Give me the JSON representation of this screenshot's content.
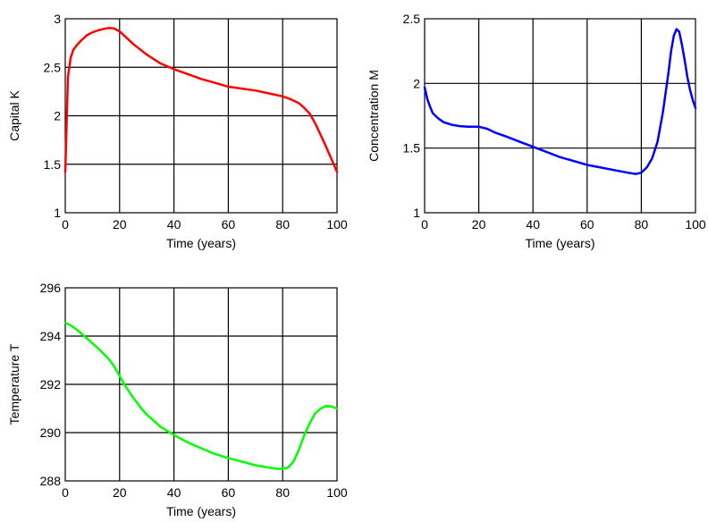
{
  "chart_data": [
    {
      "type": "line",
      "xlabel": "Time (years)",
      "ylabel": "Capital K",
      "xlim": [
        0,
        100
      ],
      "ylim": [
        1,
        3
      ],
      "xticks": [
        "0",
        "20",
        "40",
        "60",
        "80",
        "100"
      ],
      "yticks": [
        "1",
        "1.5",
        "2",
        "2.5",
        "3"
      ],
      "grid": true,
      "color": "#ff0000",
      "x": [
        0,
        1,
        2,
        3,
        4,
        5,
        6,
        8,
        10,
        12,
        14,
        16,
        18,
        20,
        25,
        30,
        35,
        40,
        45,
        50,
        55,
        60,
        65,
        70,
        75,
        80,
        83,
        86,
        88,
        90,
        92,
        94,
        96,
        98,
        100
      ],
      "y": [
        1.42,
        2.4,
        2.6,
        2.68,
        2.72,
        2.75,
        2.78,
        2.83,
        2.86,
        2.88,
        2.895,
        2.905,
        2.9,
        2.87,
        2.74,
        2.63,
        2.54,
        2.48,
        2.43,
        2.38,
        2.34,
        2.3,
        2.28,
        2.26,
        2.23,
        2.2,
        2.17,
        2.13,
        2.08,
        2.02,
        1.92,
        1.8,
        1.68,
        1.55,
        1.42
      ]
    },
    {
      "type": "line",
      "xlabel": "Time (years)",
      "ylabel": "Concentration M",
      "xlim": [
        0,
        100
      ],
      "ylim": [
        1,
        2.5
      ],
      "xticks": [
        "0",
        "20",
        "40",
        "60",
        "80",
        "100"
      ],
      "yticks": [
        "1",
        "1.5",
        "2",
        "2.5"
      ],
      "grid": true,
      "color": "#0000ff",
      "x": [
        0,
        1,
        2,
        3,
        5,
        7,
        10,
        13,
        16,
        20,
        23,
        26,
        30,
        35,
        40,
        45,
        50,
        55,
        60,
        65,
        70,
        75,
        78,
        80,
        82,
        84,
        86,
        88,
        90,
        91,
        92,
        93,
        94,
        95,
        96,
        97,
        98,
        99,
        100
      ],
      "y": [
        1.97,
        1.88,
        1.82,
        1.77,
        1.73,
        1.7,
        1.68,
        1.67,
        1.665,
        1.665,
        1.65,
        1.62,
        1.59,
        1.55,
        1.51,
        1.47,
        1.43,
        1.4,
        1.37,
        1.35,
        1.33,
        1.31,
        1.3,
        1.31,
        1.35,
        1.42,
        1.55,
        1.78,
        2.08,
        2.25,
        2.37,
        2.42,
        2.4,
        2.3,
        2.18,
        2.05,
        1.95,
        1.87,
        1.81
      ]
    },
    {
      "type": "line",
      "xlabel": "Time (years)",
      "ylabel": "Temperature T",
      "xlim": [
        0,
        100
      ],
      "ylim": [
        288,
        296
      ],
      "xticks": [
        "0",
        "20",
        "40",
        "60",
        "80",
        "100"
      ],
      "yticks": [
        "288",
        "290",
        "292",
        "294",
        "296"
      ],
      "grid": true,
      "color": "#00ff00",
      "x": [
        0,
        2,
        5,
        8,
        10,
        13,
        16,
        18,
        20,
        22,
        25,
        28,
        30,
        35,
        40,
        45,
        50,
        55,
        60,
        65,
        70,
        75,
        78,
        80,
        82,
        84,
        86,
        88,
        90,
        92,
        94,
        96,
        98,
        100
      ],
      "y": [
        294.55,
        294.45,
        294.2,
        293.9,
        293.7,
        293.4,
        293.05,
        292.75,
        292.35,
        291.95,
        291.45,
        291.0,
        290.75,
        290.25,
        289.9,
        289.6,
        289.35,
        289.12,
        288.95,
        288.8,
        288.65,
        288.55,
        288.5,
        288.5,
        288.55,
        288.8,
        289.3,
        289.9,
        290.4,
        290.8,
        291.0,
        291.1,
        291.08,
        291.0
      ]
    }
  ]
}
